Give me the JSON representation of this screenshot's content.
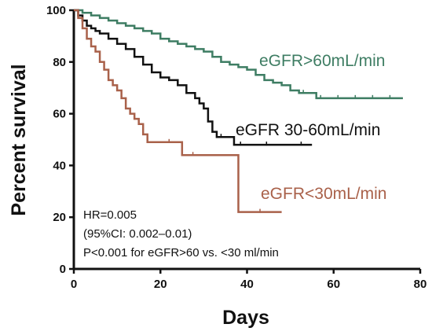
{
  "chart_data": {
    "type": "line",
    "xlabel": "Days",
    "ylabel": "Percent survival",
    "xlim": [
      0,
      80
    ],
    "ylim": [
      0,
      100
    ],
    "xticks": [
      0,
      20,
      40,
      60,
      80
    ],
    "yticks": [
      0,
      20,
      40,
      60,
      80,
      100
    ],
    "grid": false,
    "annotations": [
      "HR=0.005",
      "(95%CI: 0.002–0.01)",
      "P<0.001 for eGFR>60 vs. <30 ml/min"
    ],
    "series": [
      {
        "name": "eGFR>60mL/min",
        "color": "#3e7d63",
        "x": [
          0,
          2,
          4,
          6,
          8,
          10,
          12,
          14,
          16,
          18,
          20,
          22,
          24,
          26,
          28,
          30,
          32,
          34,
          36,
          38,
          40,
          42,
          44,
          46,
          48,
          50,
          52,
          54,
          56,
          58,
          60,
          62,
          64,
          66,
          68,
          70,
          72,
          74,
          76
        ],
        "y": [
          100,
          99,
          98,
          97,
          96,
          95,
          94,
          93,
          92,
          91,
          89,
          88,
          87,
          86,
          85,
          84,
          82,
          80,
          79,
          78,
          77,
          75,
          73,
          72,
          71,
          69,
          68,
          68,
          66,
          66,
          66,
          66,
          66,
          66,
          66,
          66,
          66,
          66,
          66
        ]
      },
      {
        "name": "eGFR 30-60mL/min",
        "color": "#111111",
        "x": [
          0,
          1,
          2,
          3,
          4,
          5,
          6,
          8,
          10,
          12,
          14,
          16,
          18,
          20,
          22,
          24,
          26,
          28,
          29,
          30,
          31,
          32,
          33,
          35,
          37,
          40,
          43,
          46,
          50,
          55
        ],
        "y": [
          100,
          98,
          96,
          94,
          93,
          92,
          91,
          89,
          87,
          85,
          82,
          79,
          76,
          74,
          73,
          71,
          68,
          66,
          64,
          62,
          57,
          53,
          51,
          51,
          48,
          48,
          48,
          48,
          48,
          48
        ]
      },
      {
        "name": "eGFR<30mL/min",
        "color": "#a9614a",
        "x": [
          0,
          1,
          2,
          3,
          4,
          5,
          6,
          7,
          8,
          9,
          10,
          11,
          12,
          13,
          14,
          15,
          16,
          17,
          20,
          24,
          25,
          30,
          35,
          38,
          41,
          45,
          48
        ],
        "y": [
          100,
          97,
          93,
          89,
          86,
          84,
          80,
          77,
          73,
          71,
          69,
          66,
          62,
          60,
          58,
          56,
          52,
          49,
          49,
          49,
          44,
          44,
          44,
          22,
          22,
          22,
          22
        ]
      }
    ],
    "series_label_text": [
      "eGFR>60mL/min",
      "eGFR 30-60mL/min",
      "eGFR<30mL/min"
    ]
  }
}
